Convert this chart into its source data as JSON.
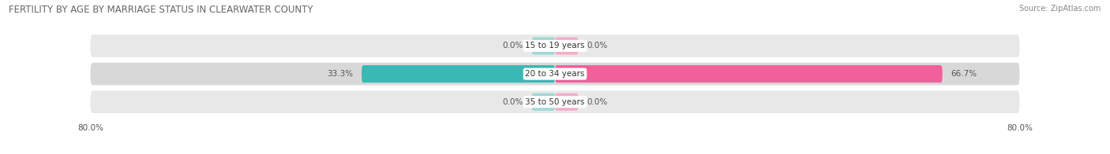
{
  "title": "FERTILITY BY AGE BY MARRIAGE STATUS IN CLEARWATER COUNTY",
  "source": "Source: ZipAtlas.com",
  "categories": [
    "15 to 19 years",
    "20 to 34 years",
    "35 to 50 years"
  ],
  "married_values": [
    0.0,
    33.3,
    0.0
  ],
  "unmarried_values": [
    0.0,
    66.7,
    0.0
  ],
  "married_color": "#3ab8b3",
  "unmarried_color": "#f0609a",
  "married_stub_color": "#9dd8d6",
  "unmarried_stub_color": "#f5aac8",
  "row_bg_color_odd": "#e8e8e8",
  "row_bg_color_even": "#d8d8d8",
  "axis_min": -80.0,
  "axis_max": 80.0,
  "stub_size": 4.0,
  "title_fontsize": 8.5,
  "label_fontsize": 7.5,
  "value_fontsize": 7.5,
  "tick_fontsize": 7.5,
  "source_fontsize": 7.0,
  "background_color": "#ffffff"
}
